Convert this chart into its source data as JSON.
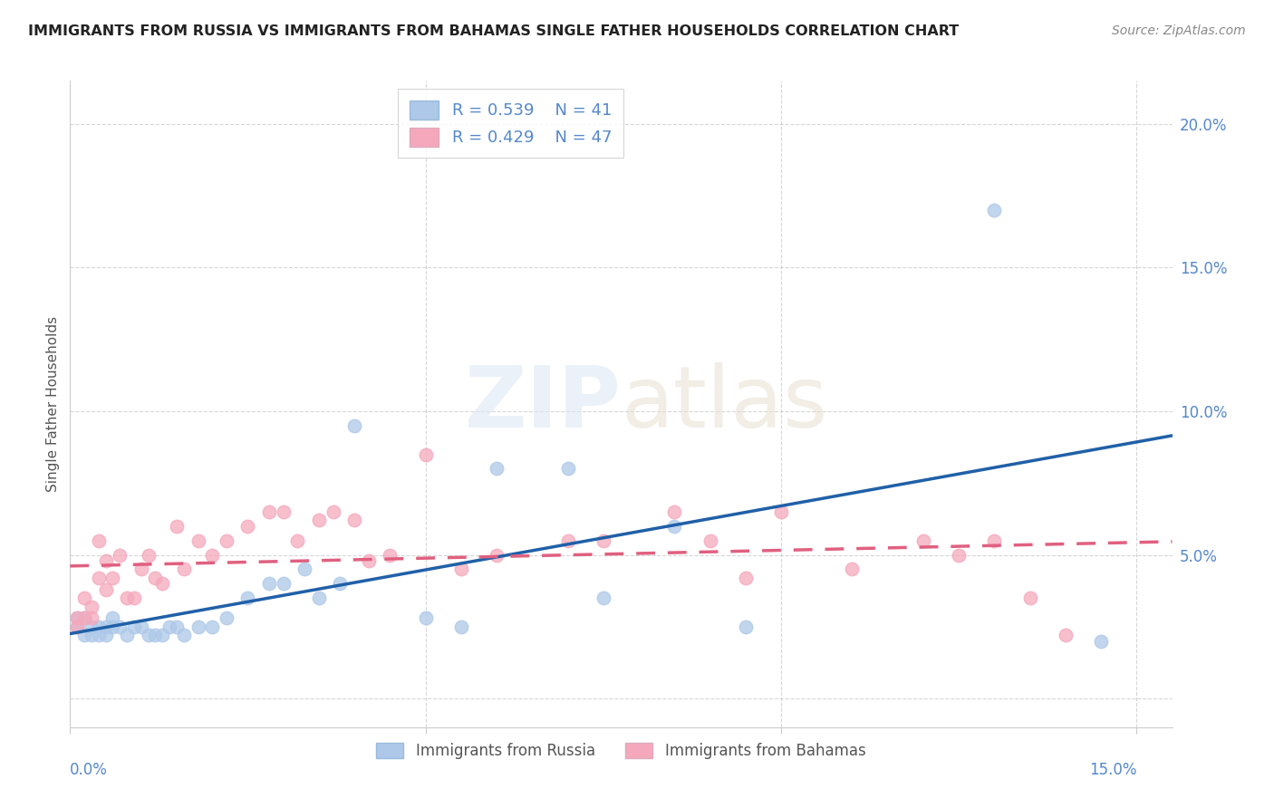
{
  "title": "IMMIGRANTS FROM RUSSIA VS IMMIGRANTS FROM BAHAMAS SINGLE FATHER HOUSEHOLDS CORRELATION CHART",
  "source": "Source: ZipAtlas.com",
  "ylabel": "Single Father Households",
  "legend_russia_R": "0.539",
  "legend_russia_N": "41",
  "legend_bahamas_R": "0.429",
  "legend_bahamas_N": "47",
  "russia_color": "#adc8e8",
  "bahamas_color": "#f5a8bc",
  "russia_line_color": "#2060a8",
  "bahamas_line_color": "#e06080",
  "russia_scatter_x": [
    0.001,
    0.001,
    0.002,
    0.002,
    0.003,
    0.003,
    0.004,
    0.004,
    0.005,
    0.005,
    0.006,
    0.006,
    0.007,
    0.008,
    0.009,
    0.01,
    0.011,
    0.012,
    0.013,
    0.014,
    0.015,
    0.016,
    0.018,
    0.02,
    0.022,
    0.025,
    0.028,
    0.03,
    0.033,
    0.035,
    0.038,
    0.04,
    0.05,
    0.055,
    0.06,
    0.07,
    0.075,
    0.085,
    0.095,
    0.13,
    0.145
  ],
  "russia_scatter_y": [
    0.028,
    0.025,
    0.022,
    0.028,
    0.025,
    0.022,
    0.025,
    0.022,
    0.025,
    0.022,
    0.028,
    0.025,
    0.025,
    0.022,
    0.025,
    0.025,
    0.022,
    0.022,
    0.022,
    0.025,
    0.025,
    0.022,
    0.025,
    0.025,
    0.028,
    0.035,
    0.04,
    0.04,
    0.045,
    0.035,
    0.04,
    0.095,
    0.028,
    0.025,
    0.08,
    0.08,
    0.035,
    0.06,
    0.025,
    0.17,
    0.02
  ],
  "bahamas_scatter_x": [
    0.001,
    0.001,
    0.002,
    0.002,
    0.003,
    0.003,
    0.004,
    0.004,
    0.005,
    0.005,
    0.006,
    0.007,
    0.008,
    0.009,
    0.01,
    0.011,
    0.012,
    0.013,
    0.015,
    0.016,
    0.018,
    0.02,
    0.022,
    0.025,
    0.028,
    0.03,
    0.032,
    0.035,
    0.037,
    0.04,
    0.042,
    0.045,
    0.05,
    0.055,
    0.06,
    0.07,
    0.075,
    0.085,
    0.09,
    0.095,
    0.1,
    0.11,
    0.12,
    0.125,
    0.13,
    0.135,
    0.14
  ],
  "bahamas_scatter_y": [
    0.025,
    0.028,
    0.028,
    0.035,
    0.032,
    0.028,
    0.042,
    0.055,
    0.048,
    0.038,
    0.042,
    0.05,
    0.035,
    0.035,
    0.045,
    0.05,
    0.042,
    0.04,
    0.06,
    0.045,
    0.055,
    0.05,
    0.055,
    0.06,
    0.065,
    0.065,
    0.055,
    0.062,
    0.065,
    0.062,
    0.048,
    0.05,
    0.085,
    0.045,
    0.05,
    0.055,
    0.055,
    0.065,
    0.055,
    0.042,
    0.065,
    0.045,
    0.055,
    0.05,
    0.055,
    0.035,
    0.022
  ],
  "xlim": [
    0.0,
    0.155
  ],
  "ylim": [
    -0.01,
    0.215
  ],
  "ytick_values": [
    0.0,
    0.05,
    0.1,
    0.15,
    0.2
  ],
  "ytick_labels": [
    "",
    "5.0%",
    "10.0%",
    "15.0%",
    "20.0%"
  ],
  "xtick_values": [
    0.0,
    0.05,
    0.1,
    0.15
  ],
  "xtick_labels": [
    "0.0%",
    "",
    "",
    "15.0%"
  ]
}
